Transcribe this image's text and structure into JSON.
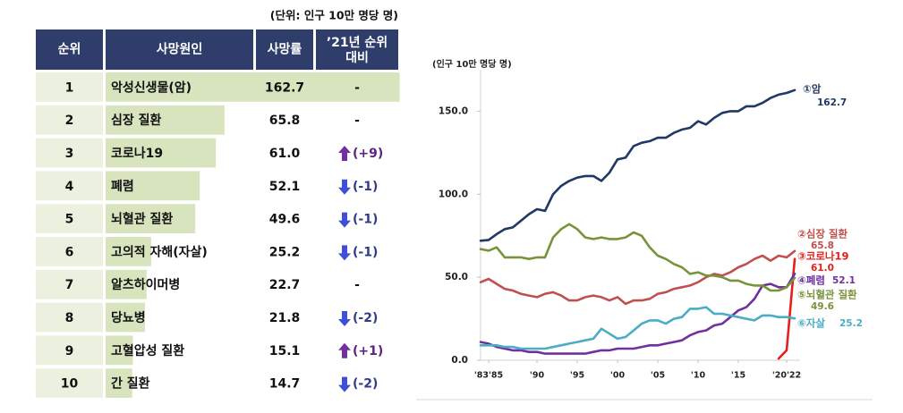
{
  "table": {
    "unit_note": "(단위: 인구 10만 명당 명)",
    "headers": [
      "순위",
      "사망원인",
      "사망률",
      [
        "’21년 순위",
        "대비"
      ]
    ],
    "rows": [
      {
        "rank": 1,
        "cause": "악성신생물(암)",
        "rate": 162.7,
        "change": "-",
        "trend": null
      },
      {
        "rank": 2,
        "cause": "심장 질환",
        "rate": 65.8,
        "change": "-",
        "trend": null
      },
      {
        "rank": 3,
        "cause": "코로나19",
        "rate": 61.0,
        "rate_label": "61.0",
        "change": "(+9)",
        "trend": "up"
      },
      {
        "rank": 4,
        "cause": "폐렴",
        "rate": 52.1,
        "change": "(-1)",
        "trend": "down"
      },
      {
        "rank": 5,
        "cause": "뇌혈관 질환",
        "rate": 49.6,
        "change": "(-1)",
        "trend": "down"
      },
      {
        "rank": 6,
        "cause": "고의적 자해(자살)",
        "rate": 25.2,
        "change": "(-1)",
        "trend": "down"
      },
      {
        "rank": 7,
        "cause": "알츠하이머병",
        "rate": 22.7,
        "change": "-",
        "trend": null
      },
      {
        "rank": 8,
        "cause": "당뇨병",
        "rate": 21.8,
        "change": "(-2)",
        "trend": "down"
      },
      {
        "rank": 9,
        "cause": "고혈압성 질환",
        "rate": 15.1,
        "change": "(+1)",
        "trend": "up"
      },
      {
        "rank": 10,
        "cause": "간 질환",
        "rate": 14.7,
        "change": "(-2)",
        "trend": "down"
      }
    ]
  },
  "chart_data": {
    "type": "line",
    "y_label": "(인구 10만 명당 명)",
    "x": [
      1983,
      1984,
      1985,
      1986,
      1987,
      1988,
      1989,
      1990,
      1991,
      1992,
      1993,
      1994,
      1995,
      1996,
      1997,
      1998,
      1999,
      2000,
      2001,
      2002,
      2003,
      2004,
      2005,
      2006,
      2007,
      2008,
      2009,
      2010,
      2011,
      2012,
      2013,
      2014,
      2015,
      2016,
      2017,
      2018,
      2019,
      2020,
      2021,
      2022
    ],
    "xlim": [
      1983,
      2022
    ],
    "xticks": [
      {
        "value": 1984,
        "label": "'83'85"
      },
      {
        "value": 1990,
        "label": "'90"
      },
      {
        "value": 1995,
        "label": "'95"
      },
      {
        "value": 2000,
        "label": "'00"
      },
      {
        "value": 2005,
        "label": "'05"
      },
      {
        "value": 2010,
        "label": "'10"
      },
      {
        "value": 2015,
        "label": "'15"
      },
      {
        "value": 2021,
        "label": "'20'22"
      }
    ],
    "ylim": [
      0,
      175
    ],
    "yticks": [
      {
        "value": 0,
        "label": "0.0"
      },
      {
        "value": 50,
        "label": "50.0"
      },
      {
        "value": 100,
        "label": "100.0"
      },
      {
        "value": 150,
        "label": "150.0"
      }
    ],
    "series": [
      {
        "name": "①암",
        "color": "#1f3864",
        "values": [
          72,
          72.5,
          76,
          79,
          80,
          84,
          88,
          91,
          90,
          100,
          105,
          108,
          110,
          111,
          111,
          108,
          113,
          121,
          122,
          129,
          131,
          132,
          134,
          134,
          137,
          139,
          140,
          144,
          142,
          146,
          149,
          150,
          150,
          153,
          153,
          155,
          158,
          160,
          161,
          162.7
        ]
      },
      {
        "name": "②심장 질환",
        "color": "#c0504d",
        "values": [
          47,
          49,
          46,
          43,
          42,
          40,
          39,
          38,
          40,
          41,
          39,
          36,
          36,
          38,
          39,
          38,
          36,
          38,
          34,
          36,
          36,
          37,
          40,
          41,
          43,
          44,
          45,
          47,
          50,
          52,
          51,
          53,
          56,
          58,
          61,
          63,
          60,
          63,
          62,
          65.8
        ]
      },
      {
        "name": "③코로나19",
        "color": "#e3211c",
        "values": [
          null,
          null,
          null,
          null,
          null,
          null,
          null,
          null,
          null,
          null,
          null,
          null,
          null,
          null,
          null,
          null,
          null,
          null,
          null,
          null,
          null,
          null,
          null,
          null,
          null,
          null,
          null,
          null,
          null,
          null,
          null,
          null,
          null,
          null,
          null,
          null,
          null,
          1,
          6,
          61.0
        ],
        "value_labels": [
          null,
          null,
          null,
          null,
          null,
          null,
          null,
          null,
          null,
          null,
          null,
          null,
          null,
          null,
          null,
          null,
          null,
          null,
          null,
          null,
          null,
          null,
          null,
          null,
          null,
          null,
          null,
          null,
          null,
          null,
          null,
          null,
          null,
          null,
          null,
          null,
          null,
          null,
          null,
          "61.0"
        ]
      },
      {
        "name": "④폐렴",
        "color": "#7030a0",
        "values": [
          11,
          10,
          8,
          7,
          6,
          6,
          5,
          5,
          4,
          4,
          4,
          4,
          4,
          4,
          5,
          6,
          6,
          7,
          7,
          7,
          8,
          9,
          9,
          10,
          11,
          12,
          15,
          17,
          18,
          21,
          22,
          26,
          30,
          32,
          37,
          45,
          46,
          44,
          44,
          52.1
        ]
      },
      {
        "name": "⑤뇌혈관 질환",
        "color": "#77933c",
        "values": [
          67,
          66,
          68,
          62,
          62,
          62,
          61,
          62,
          62,
          74,
          79,
          82,
          79,
          74,
          73,
          74,
          73,
          73,
          74,
          77,
          75,
          68,
          63,
          61,
          58,
          56,
          52,
          53,
          51,
          51,
          50,
          48,
          48,
          46,
          45,
          45,
          42,
          42,
          44,
          49.6
        ]
      },
      {
        "name": "⑥자살",
        "color": "#4bacc6",
        "values": [
          9,
          9,
          9,
          8,
          8,
          7,
          7,
          7,
          7,
          8,
          9,
          10,
          11,
          12,
          13,
          19,
          16,
          13,
          14,
          18,
          22,
          24,
          24,
          22,
          25,
          26,
          31,
          31,
          32,
          28,
          28,
          27,
          26,
          25,
          24,
          27,
          27,
          26,
          26,
          25.2
        ]
      }
    ]
  }
}
